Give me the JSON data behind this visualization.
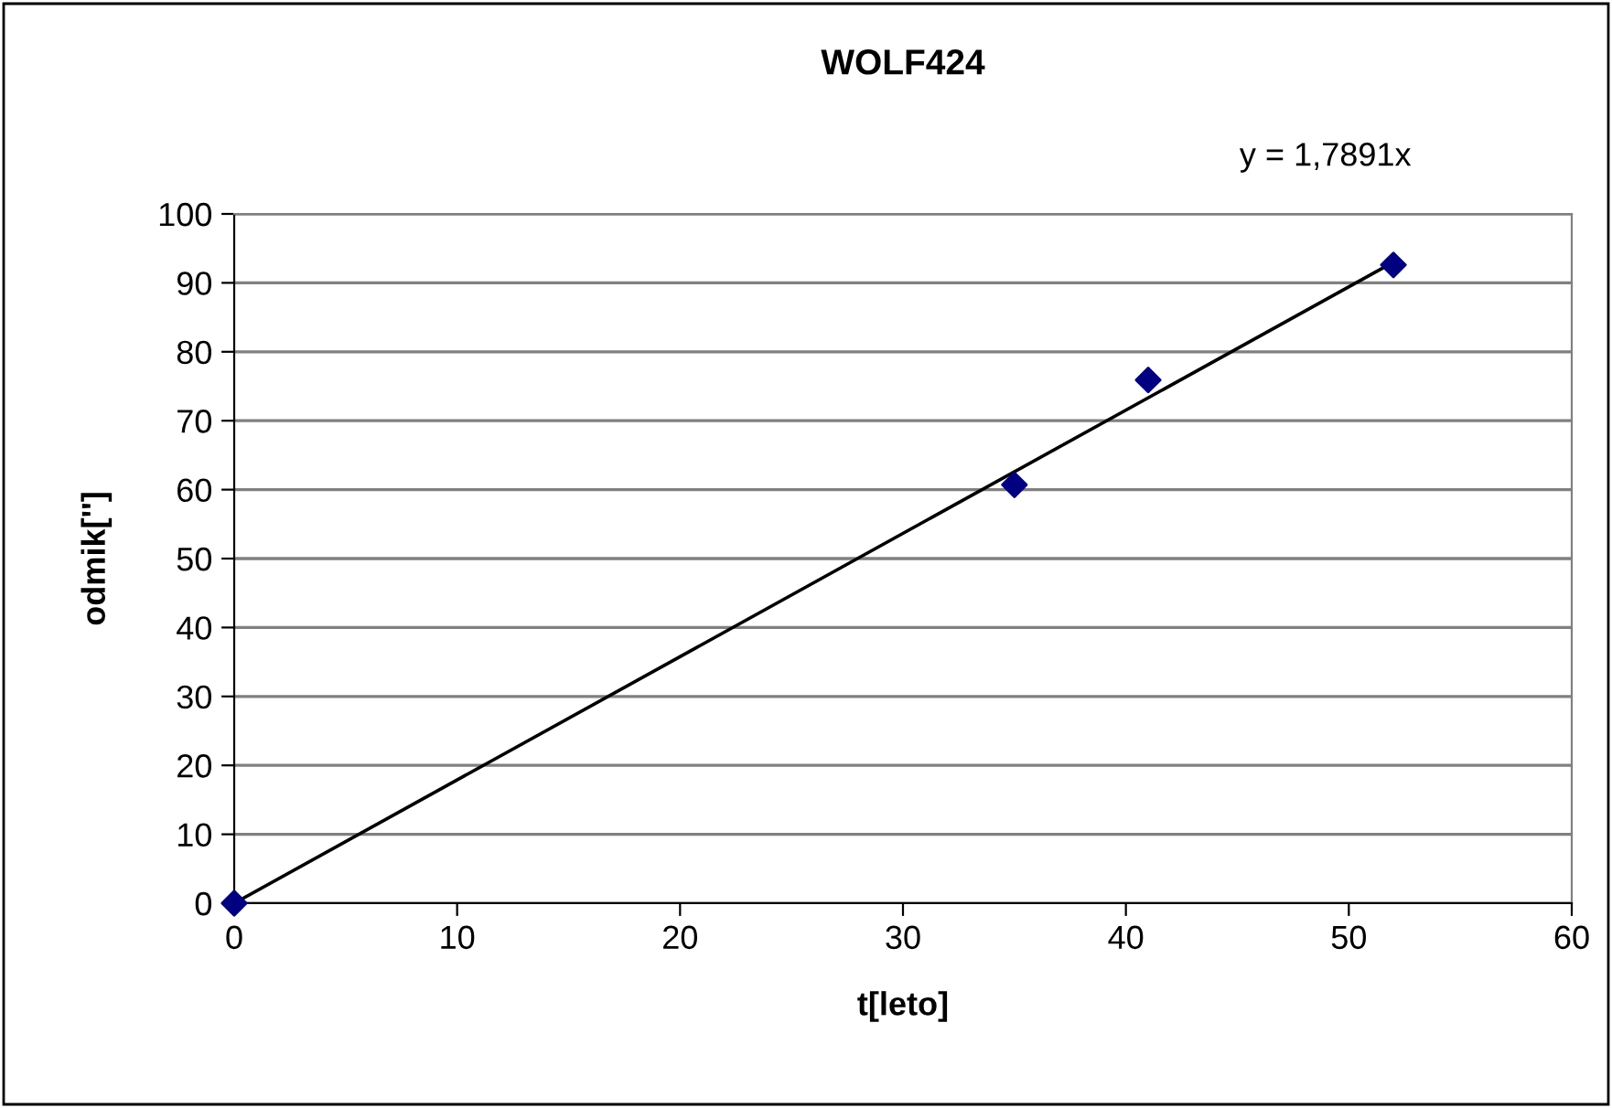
{
  "chart_data": {
    "type": "scatter",
    "title": "WOLF424",
    "xlabel": "t[leto]",
    "ylabel": "odmik['']",
    "annotations": [
      "y = 1,7891x"
    ],
    "series": [
      {
        "color": "#000080",
        "x": [
          0,
          35,
          41,
          52
        ],
        "values": [
          0,
          60.7,
          75.9,
          92.6
        ],
        "marker": "diamond"
      },
      {
        "type": "line",
        "color": "#000000",
        "x": [
          0,
          52
        ],
        "values": [
          0,
          93.0
        ],
        "marker": "none",
        "line_style": "solid"
      }
    ],
    "xlim": [
      0,
      60
    ],
    "xticks": [
      0,
      10,
      20,
      30,
      40,
      50,
      60
    ],
    "ylim": [
      0,
      100
    ],
    "yticks": [
      0,
      10,
      20,
      30,
      40,
      50,
      60,
      70,
      80,
      90,
      100
    ],
    "grid": "y",
    "legend": false
  }
}
